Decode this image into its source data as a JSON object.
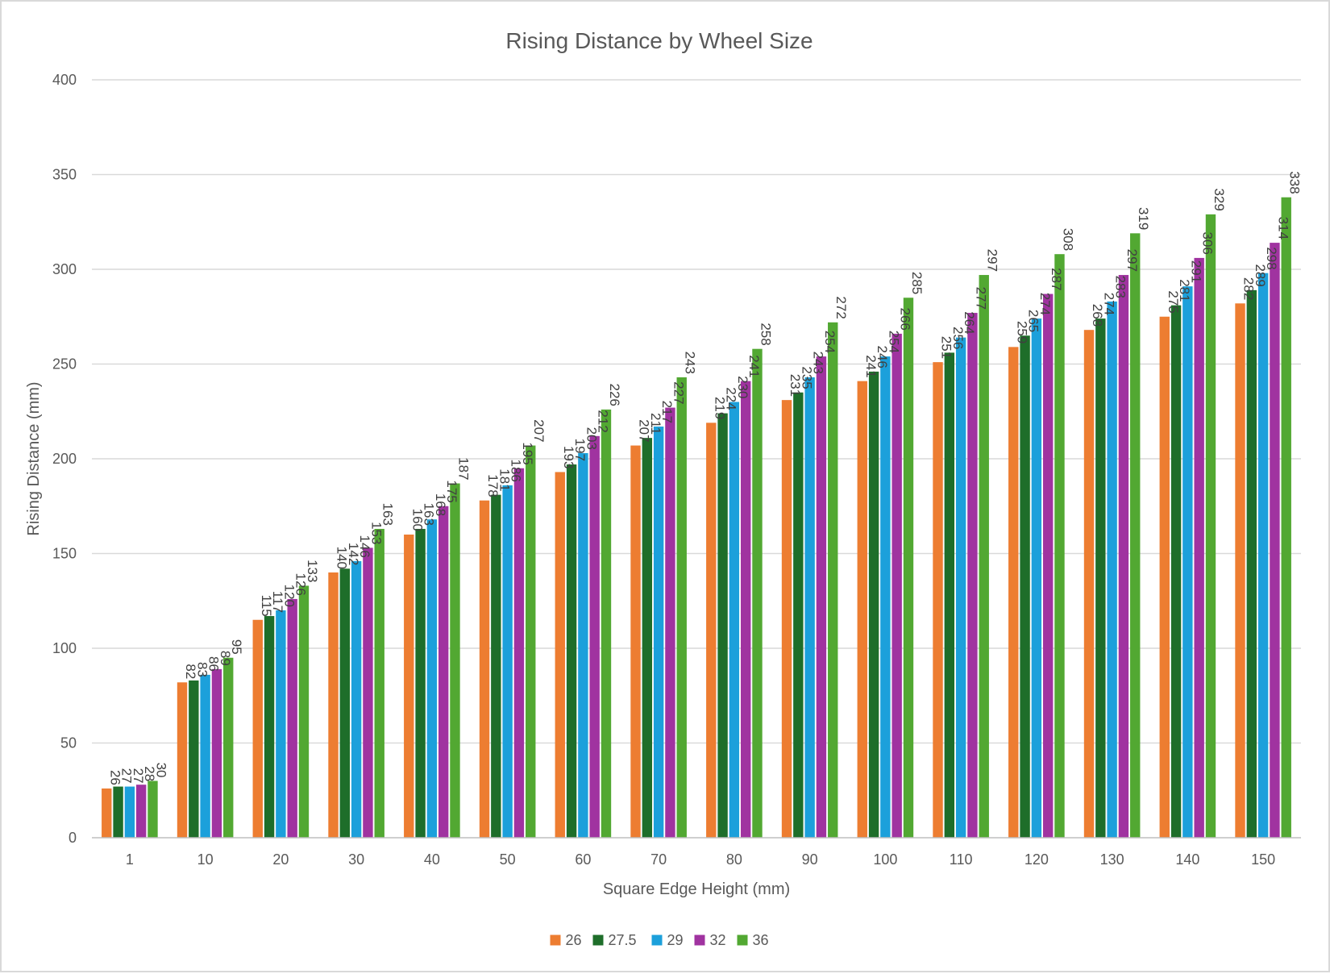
{
  "chart_data": {
    "type": "bar",
    "title": "Rising Distance by Wheel Size",
    "xlabel": "Square Edge Height (mm)",
    "ylabel": "Rising Distance (mm)",
    "ylim": [
      0,
      400
    ],
    "yticks": [
      0,
      50,
      100,
      150,
      200,
      250,
      300,
      350,
      400
    ],
    "grid": true,
    "legend_position": "bottom",
    "categories": [
      "1",
      "10",
      "20",
      "30",
      "40",
      "50",
      "60",
      "70",
      "80",
      "90",
      "100",
      "110",
      "120",
      "130",
      "140",
      "150"
    ],
    "series": [
      {
        "name": "26",
        "color": "#ED7D31",
        "values": [
          26,
          82,
          115,
          140,
          160,
          178,
          193,
          207,
          219,
          231,
          241,
          251,
          259,
          268,
          275,
          282
        ]
      },
      {
        "name": "27.5",
        "color": "#1E6E2A",
        "values": [
          27,
          83,
          117,
          142,
          163,
          181,
          197,
          211,
          224,
          235,
          246,
          256,
          265,
          274,
          281,
          289
        ]
      },
      {
        "name": "29",
        "color": "#1CA0DB",
        "values": [
          27,
          86,
          120,
          146,
          168,
          186,
          203,
          217,
          230,
          243,
          254,
          264,
          274,
          283,
          291,
          298
        ]
      },
      {
        "name": "32",
        "color": "#A033A0",
        "values": [
          28,
          89,
          126,
          153,
          175,
          195,
          212,
          227,
          241,
          254,
          266,
          277,
          287,
          297,
          306,
          314
        ]
      },
      {
        "name": "36",
        "color": "#52A832",
        "values": [
          30,
          95,
          133,
          163,
          187,
          207,
          226,
          243,
          258,
          272,
          285,
          297,
          308,
          319,
          329,
          338
        ]
      }
    ]
  }
}
